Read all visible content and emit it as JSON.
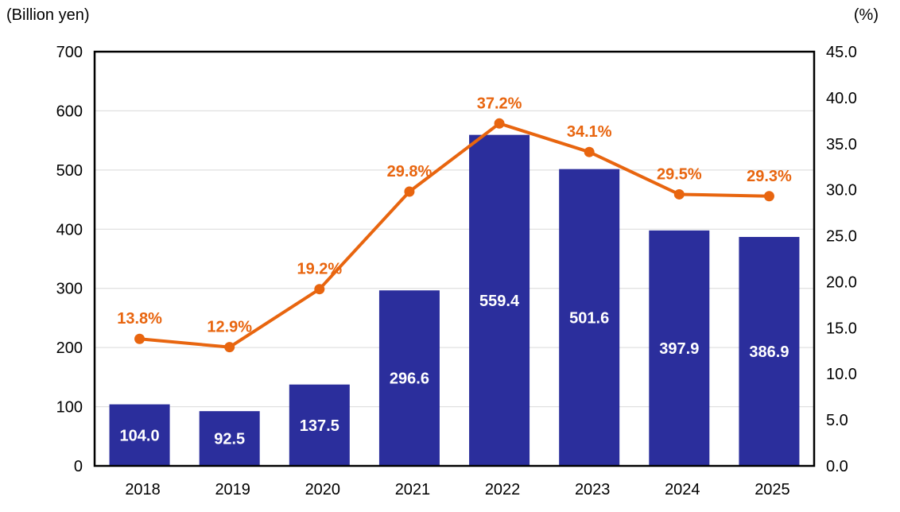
{
  "chart_data": {
    "type": "combo",
    "title": "",
    "categories": [
      "2018",
      "2019",
      "2020",
      "2021",
      "2022",
      "2023",
      "2024",
      "2025"
    ],
    "series": [
      {
        "name": "amount-bars",
        "type": "bar",
        "axis": "left",
        "color": "#2B2E9C",
        "label_color": "#FFFFFF",
        "values": [
          104.0,
          92.5,
          137.5,
          296.6,
          559.4,
          501.6,
          397.9,
          386.9
        ],
        "labels": [
          "104.0",
          "92.5",
          "137.5",
          "296.6",
          "559.4",
          "501.6",
          "397.9",
          "386.9"
        ]
      },
      {
        "name": "percentage-line",
        "type": "line",
        "axis": "right",
        "color": "#E8650F",
        "label_color": "#E8650F",
        "values": [
          13.8,
          12.9,
          19.2,
          29.8,
          37.2,
          34.1,
          29.5,
          29.3
        ],
        "labels": [
          "13.8%",
          "12.9%",
          "19.2%",
          "29.8%",
          "37.2%",
          "34.1%",
          "29.5%",
          "29.3%"
        ]
      }
    ],
    "left_axis": {
      "title": "(Billion yen)",
      "min": 0,
      "max": 700,
      "step": 100,
      "tick_labels": [
        "0",
        "100",
        "200",
        "300",
        "400",
        "500",
        "600",
        "700"
      ]
    },
    "right_axis": {
      "title": "(%)",
      "min": 0,
      "max": 45,
      "step": 5,
      "tick_labels": [
        "0.0",
        "5.0",
        "10.0",
        "15.0",
        "20.0",
        "25.0",
        "30.0",
        "35.0",
        "40.0",
        "45.0"
      ]
    },
    "grid": true,
    "legend": "none",
    "colors": {
      "grid": "#D9D9D9",
      "axis_line": "#000000",
      "tick_text": "#000000"
    }
  }
}
